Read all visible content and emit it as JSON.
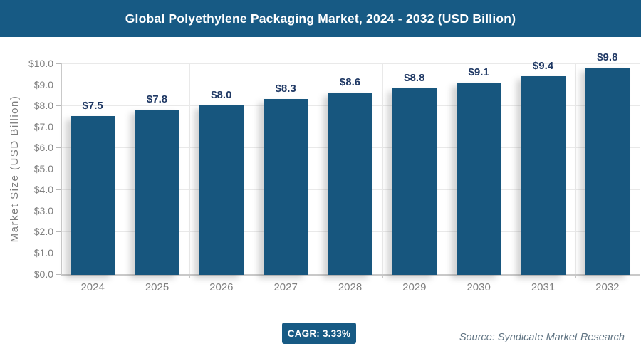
{
  "header": {
    "title": "Global Polyethylene Packaging Market, 2024 - 2032 (USD Billion)"
  },
  "footer": {
    "cagr": "CAGR: 3.33%",
    "source": "Source: Syndicate Market Research"
  },
  "chart_data": {
    "type": "bar",
    "title": "Global Polyethylene Packaging Market, 2024 - 2032 (USD Billion)",
    "categories": [
      "2024",
      "2025",
      "2026",
      "2027",
      "2028",
      "2029",
      "2030",
      "2031",
      "2032"
    ],
    "values": [
      7.5,
      7.8,
      8.0,
      8.3,
      8.6,
      8.8,
      9.1,
      9.4,
      9.8
    ],
    "value_labels": [
      "$7.5",
      "$7.8",
      "$8.0",
      "$8.3",
      "$8.6",
      "$8.8",
      "$9.1",
      "$9.4",
      "$9.8"
    ],
    "xlabel": "",
    "ylabel": "Market Size (USD Billion)",
    "ylim": [
      0,
      10
    ],
    "ytick_labels": [
      "$0.0",
      "$1.0",
      "$2.0",
      "$3.0",
      "$4.0",
      "$5.0",
      "$6.0",
      "$7.0",
      "$8.0",
      "$9.0",
      "$10.0"
    ],
    "grid": true,
    "legend": "none",
    "cagr": "3.33%"
  },
  "colors": {
    "header_bg": "#175A84",
    "bar": "#17567E",
    "value_label": "#1F3864",
    "axis_text": "#7F7F7F",
    "grid_line": "#E9E9E9",
    "axis_line": "#C9C9C9",
    "badge_bg": "#175A84",
    "source_text": "#5F7382"
  }
}
